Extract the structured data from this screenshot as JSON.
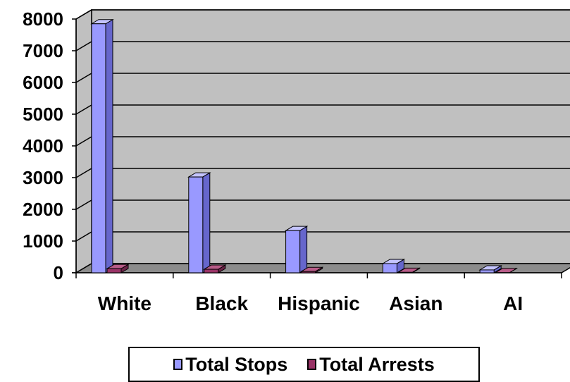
{
  "chart_data": {
    "type": "bar",
    "categories": [
      "White",
      "Black",
      "Hispanic",
      "Asian",
      "AI"
    ],
    "series": [
      {
        "name": "Total Stops",
        "values": [
          7850,
          3020,
          1330,
          290,
          90
        ]
      },
      {
        "name": "Total Arrests",
        "values": [
          130,
          110,
          40,
          15,
          5
        ]
      }
    ],
    "yticks": [
      "0",
      "1000",
      "2000",
      "3000",
      "4000",
      "5000",
      "6000",
      "7000",
      "8000"
    ],
    "ylim": [
      0,
      8000
    ],
    "grid": true,
    "legend_position": "bottom",
    "colors": {
      "stops_front": "#9999ff",
      "stops_side": "#6666cc",
      "stops_top": "#c4c4ff",
      "arrests_front": "#993366",
      "arrests_side": "#6b2347",
      "arrests_top": "#b85c88",
      "wall": "#c0c0c0",
      "floor": "#8c8c8c"
    }
  }
}
